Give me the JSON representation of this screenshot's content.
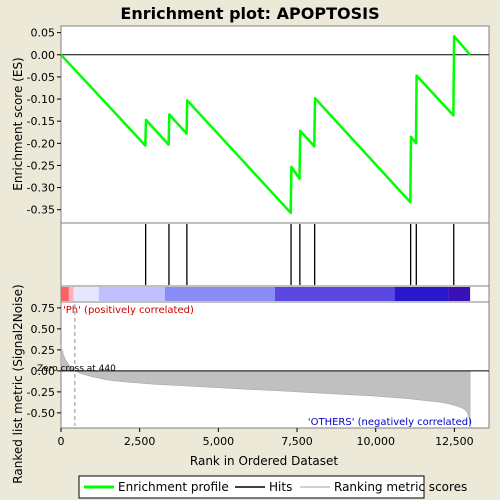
{
  "chart_data": {
    "type": "line",
    "title": "Enrichment plot: APOPTOSIS",
    "top_panel": {
      "ylabel": "Enrichment score (ES)",
      "ylim": [
        -0.38,
        0.065
      ],
      "yticks": [
        0.05,
        0.0,
        -0.05,
        -0.1,
        -0.15,
        -0.2,
        -0.25,
        -0.3,
        -0.35
      ],
      "ytick_labels": [
        "0.05",
        "0.00",
        "-0.05",
        "-0.10",
        "-0.15",
        "-0.20",
        "-0.25",
        "-0.30",
        "-0.35"
      ],
      "series": [
        {
          "name": "Enrichment profile",
          "color": "#00ff00",
          "x": [
            0,
            2680,
            2700,
            3420,
            3440,
            3990,
            4010,
            7300,
            7320,
            7580,
            7600,
            8050,
            8070,
            11100,
            11120,
            11280,
            11300,
            12470,
            12490,
            13000
          ],
          "y": [
            0.0,
            -0.205,
            -0.147,
            -0.203,
            -0.135,
            -0.178,
            -0.103,
            -0.357,
            -0.253,
            -0.28,
            -0.172,
            -0.207,
            -0.098,
            -0.333,
            -0.185,
            -0.2,
            -0.047,
            -0.137,
            0.042,
            0.0
          ]
        }
      ]
    },
    "hits": {
      "name": "Hits",
      "color": "#000000",
      "x": [
        2690,
        3430,
        4000,
        7310,
        7590,
        8060,
        11110,
        11290,
        12480
      ]
    },
    "color_bar": {
      "segments": [
        {
          "x0": 0,
          "x1": 250,
          "color": "#ff6060"
        },
        {
          "x0": 250,
          "x1": 400,
          "color": "#ffb0c0"
        },
        {
          "x0": 400,
          "x1": 1200,
          "color": "#e6e6ff"
        },
        {
          "x0": 1200,
          "x1": 3300,
          "color": "#c0c0ff"
        },
        {
          "x0": 3300,
          "x1": 6800,
          "color": "#8a8cf6"
        },
        {
          "x0": 6800,
          "x1": 10600,
          "color": "#5a48e0"
        },
        {
          "x0": 10600,
          "x1": 12300,
          "color": "#2a18cc"
        },
        {
          "x0": 12300,
          "x1": 13000,
          "color": "#3a10b8"
        }
      ]
    },
    "bottom_panel": {
      "ylabel": "Ranked list metric (Signal2Noise)",
      "ylim": [
        -0.68,
        0.82
      ],
      "yticks": [
        0.75,
        0.5,
        0.25,
        0.0,
        -0.25,
        -0.5
      ],
      "ytick_labels": [
        "0.75",
        "0.50",
        "0.25",
        "0.00",
        "-0.25",
        "-0.50"
      ],
      "series": [
        {
          "name": "Ranking metric scores",
          "color": "#c0c0c0",
          "x": [
            0,
            30,
            80,
            150,
            250,
            440,
            700,
            1000,
            1500,
            2000,
            3000,
            4000,
            5000,
            6000,
            7000,
            8000,
            9000,
            10000,
            11000,
            11500,
            12000,
            12300,
            12600,
            12800,
            12900,
            12960,
            13000
          ],
          "y": [
            0.31,
            0.25,
            0.19,
            0.13,
            0.07,
            0.0,
            -0.04,
            -0.07,
            -0.11,
            -0.13,
            -0.16,
            -0.18,
            -0.2,
            -0.22,
            -0.24,
            -0.26,
            -0.28,
            -0.3,
            -0.33,
            -0.35,
            -0.37,
            -0.39,
            -0.42,
            -0.45,
            -0.49,
            -0.55,
            -0.68
          ]
        }
      ],
      "annotations": {
        "positive": "'Ph' (positively correlated)",
        "negative": "'OTHERS' (negatively correlated)",
        "zero_cross": "Zero cross at 440",
        "zero_cross_x": 440
      }
    },
    "xaxis": {
      "label": "Rank in Ordered Dataset",
      "xlim": [
        0,
        13600
      ],
      "xticks": [
        0,
        2500,
        5000,
        7500,
        10000,
        12500
      ],
      "xtick_labels": [
        "0",
        "2,500",
        "5,000",
        "7,500",
        "10,000",
        "12,500"
      ]
    },
    "legend": {
      "placement": "bottom",
      "items": [
        {
          "label": "Enrichment profile",
          "color": "#00ff00",
          "kind": "thick-line"
        },
        {
          "label": "Hits",
          "color": "#000000",
          "kind": "line"
        },
        {
          "label": "Ranking metric scores",
          "color": "#c0c0c0",
          "kind": "line"
        }
      ]
    }
  }
}
